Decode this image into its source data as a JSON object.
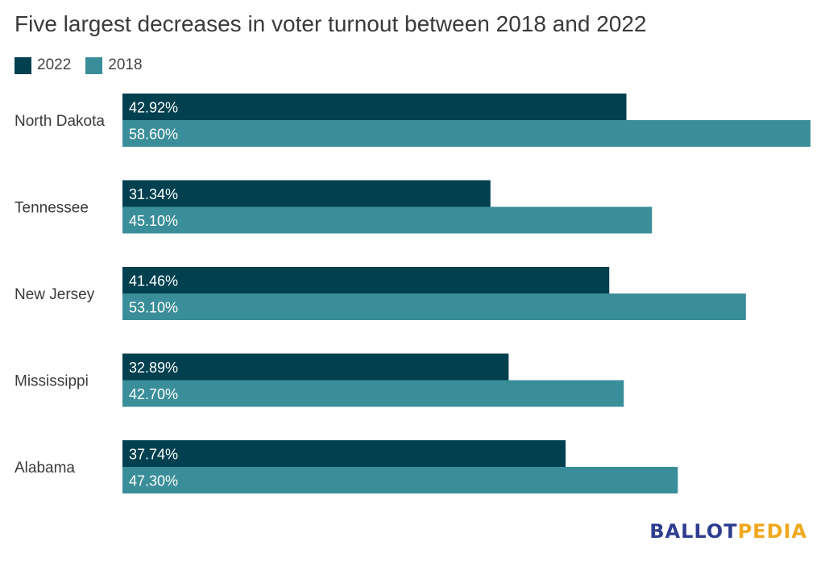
{
  "title": "Five largest decreases in voter turnout between 2018 and 2022",
  "colors": {
    "series_2022": "#00404f",
    "series_2018": "#3a8e99",
    "logo_ballot": "#2e3d8f",
    "logo_pedia": "#f0a81e"
  },
  "logo": {
    "part1": "BALLOT",
    "part2": "PEDIA"
  },
  "chart_data": {
    "type": "bar",
    "orientation": "horizontal",
    "title": "Five largest decreases in voter turnout between 2018 and 2022",
    "categories": [
      "North Dakota",
      "Tennessee",
      "New Jersey",
      "Mississippi",
      "Alabama"
    ],
    "series": [
      {
        "name": "2022",
        "values": [
          42.92,
          31.34,
          41.46,
          32.89,
          37.74
        ],
        "labels": [
          "42.92%",
          "31.34%",
          "41.46%",
          "32.89%",
          "37.74%"
        ]
      },
      {
        "name": "2018",
        "values": [
          58.6,
          45.1,
          53.1,
          42.7,
          47.3
        ],
        "labels": [
          "58.60%",
          "45.10%",
          "53.10%",
          "42.70%",
          "47.30%"
        ]
      }
    ],
    "xlim": [
      0,
      58.6
    ],
    "grid": false,
    "legend_position": "top-left"
  }
}
